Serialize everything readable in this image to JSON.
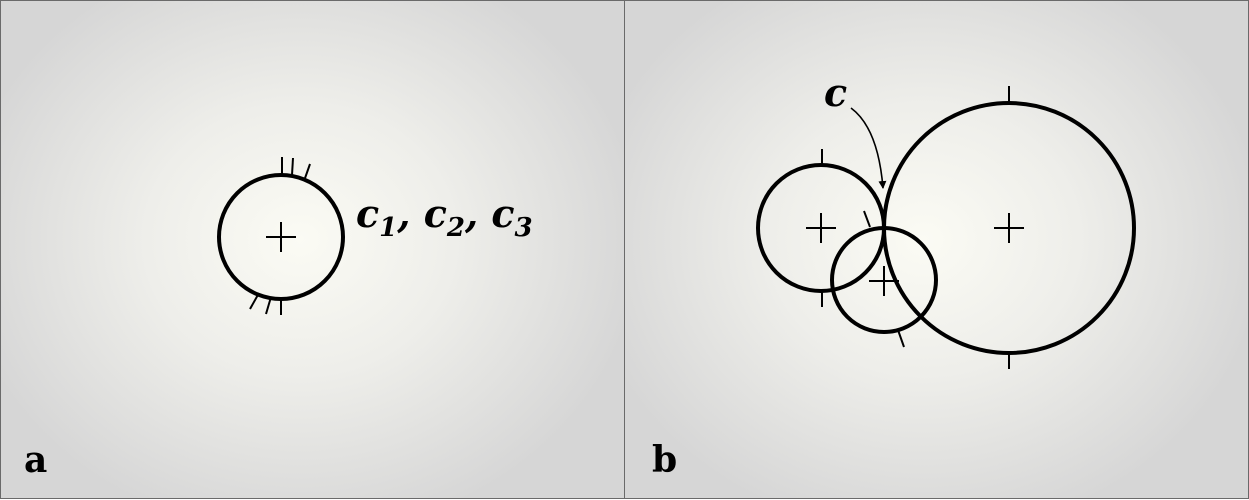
{
  "panels": [
    {
      "label": "a",
      "circle_labels": [
        "c",
        "1",
        ", ",
        "c",
        "2",
        ", ",
        "c",
        "3"
      ]
    },
    {
      "label": "b",
      "circle_label": "c"
    }
  ]
}
